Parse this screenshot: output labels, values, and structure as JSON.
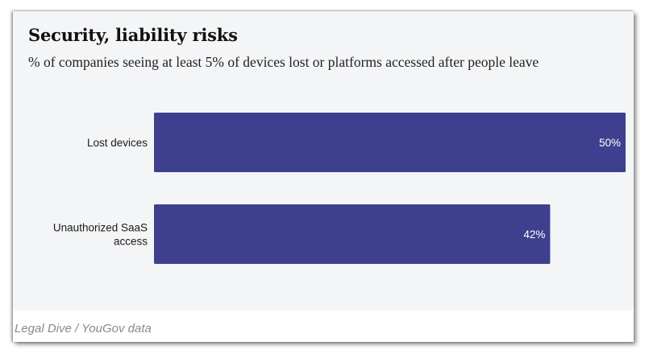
{
  "chart_data": {
    "type": "bar",
    "orientation": "horizontal",
    "title": "Security, liability risks",
    "subtitle": "% of companies seeing at least 5% of devices lost or platforms accessed after people leave",
    "categories": [
      [
        "Lost devices"
      ],
      [
        "Unauthorized SaaS",
        "access"
      ]
    ],
    "values": [
      50,
      42
    ],
    "value_labels": [
      "50%",
      "42%"
    ],
    "xlabel": "",
    "ylabel": "",
    "xlim": [
      0,
      50
    ],
    "grid": false,
    "legend": "none",
    "bar_color": "#3f3f8f",
    "source": "Legal Dive / YouGov data"
  }
}
